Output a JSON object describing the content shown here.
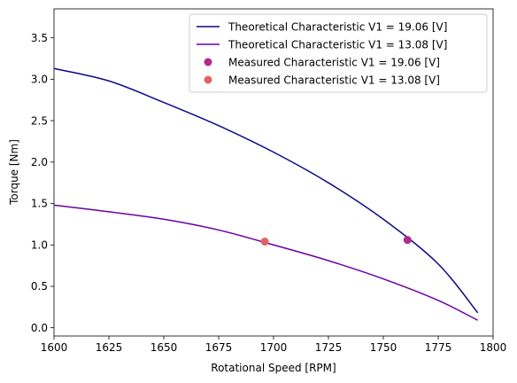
{
  "chart_data": {
    "type": "line",
    "title": "",
    "xlabel": "Rotational Speed [RPM]",
    "ylabel": "Torque [Nm]",
    "xlim": [
      1600,
      1800
    ],
    "ylim": [
      -0.1,
      3.85
    ],
    "xticks": [
      1600,
      1625,
      1650,
      1675,
      1700,
      1725,
      1750,
      1775,
      1800
    ],
    "yticks": [
      0.0,
      0.5,
      1.0,
      1.5,
      2.0,
      2.5,
      3.0,
      3.5
    ],
    "xtick_labels": [
      "1600",
      "1625",
      "1650",
      "1675",
      "1700",
      "1725",
      "1750",
      "1775",
      "1800"
    ],
    "ytick_labels": [
      "0.0",
      "0.5",
      "1.0",
      "1.5",
      "2.0",
      "2.5",
      "3.0",
      "3.5"
    ],
    "grid": false,
    "legend_position": "top-right",
    "series": [
      {
        "name": "Theoretical Characteristic V1 = 19.06 [V]",
        "kind": "line",
        "color": "#0d0887",
        "x": [
          1600,
          1625,
          1650,
          1675,
          1700,
          1725,
          1750,
          1775,
          1793
        ],
        "y": [
          3.13,
          2.98,
          2.72,
          2.44,
          2.12,
          1.75,
          1.31,
          0.77,
          0.18
        ]
      },
      {
        "name": "Theoretical Characteristic V1 = 13.08 [V]",
        "kind": "line",
        "color": "#6a00a8",
        "x": [
          1600,
          1625,
          1650,
          1675,
          1700,
          1725,
          1750,
          1775,
          1793
        ],
        "y": [
          1.48,
          1.4,
          1.31,
          1.18,
          1.0,
          0.81,
          0.59,
          0.33,
          0.09
        ]
      },
      {
        "name": "Measured Characteristic V1 = 19.06 [V]",
        "kind": "scatter",
        "color": "#b12a90",
        "x": [
          1761
        ],
        "y": [
          1.06
        ]
      },
      {
        "name": "Measured Characteristic V1 = 13.08 [V]",
        "kind": "scatter",
        "color": "#e16462",
        "x": [
          1696
        ],
        "y": [
          1.04
        ]
      }
    ]
  }
}
